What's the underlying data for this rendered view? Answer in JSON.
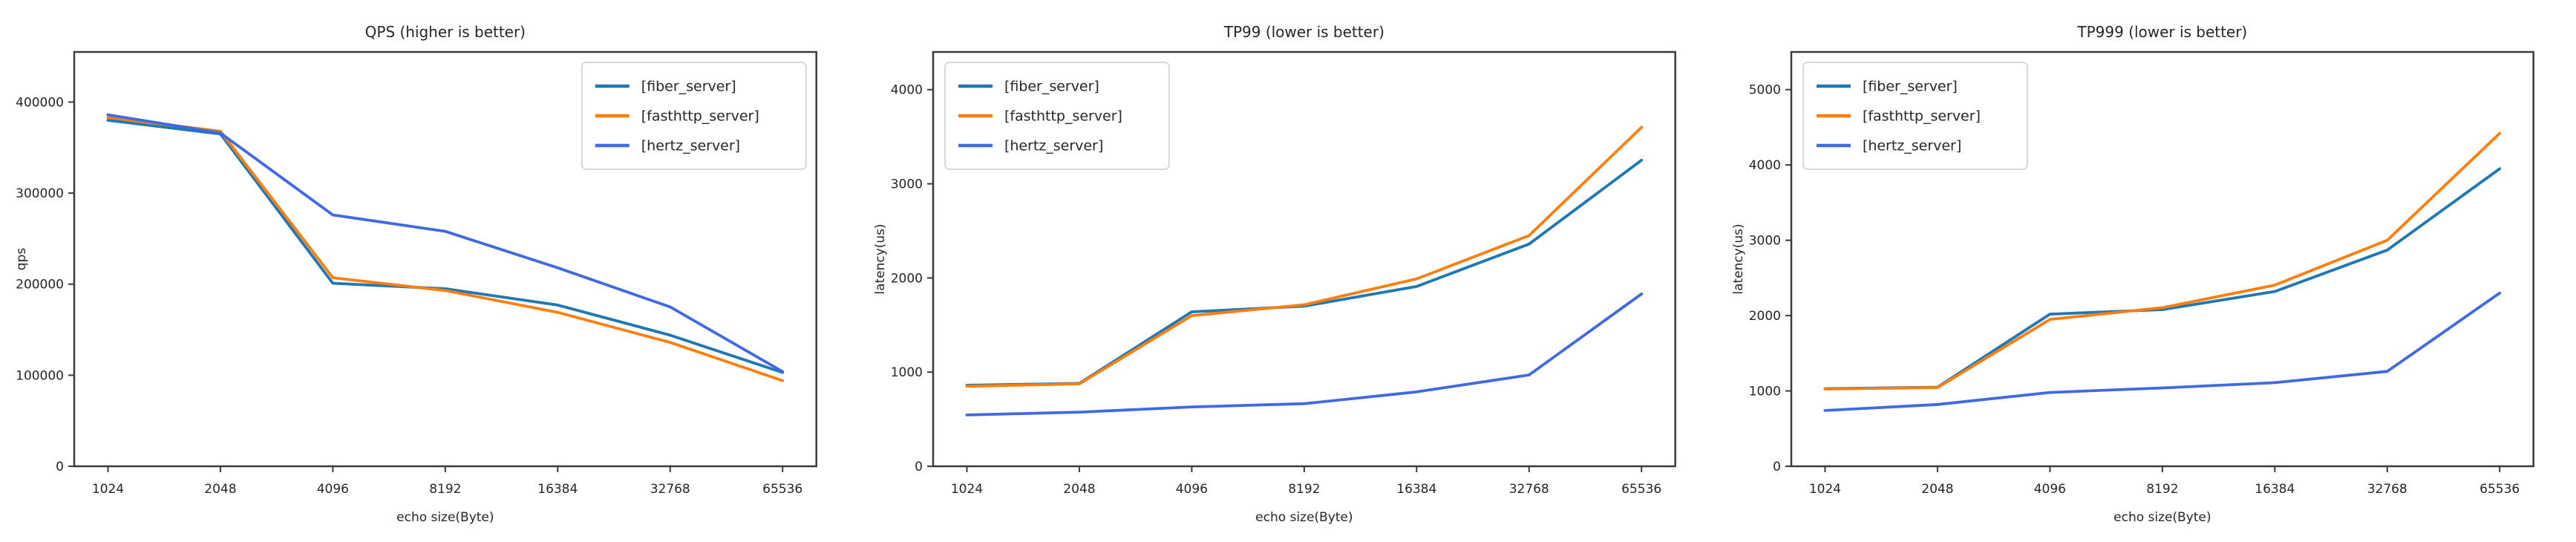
{
  "figure": {
    "background": "#ffffff",
    "text_color": "#262626",
    "spine_color": "#3b3b3b",
    "legend_border_color": "#cccccc",
    "legend_background": "#ffffff"
  },
  "chart_data": [
    {
      "type": "line",
      "title": "QPS (higher is better)",
      "xlabel": "echo size(Byte)",
      "ylabel": "qps",
      "categories": [
        "1024",
        "2048",
        "4096",
        "8192",
        "16384",
        "32768",
        "65536"
      ],
      "yticks": [
        0,
        100000,
        200000,
        300000,
        400000
      ],
      "ylim": [
        0,
        455000
      ],
      "grid": false,
      "legend_position": "upper-right",
      "series": [
        {
          "name": "[fiber_server]",
          "color": "#1f77b4",
          "values": [
            380000,
            365000,
            201000,
            195000,
            177000,
            144000,
            103000
          ]
        },
        {
          "name": "[fasthttp_server]",
          "color": "#ff7f0e",
          "values": [
            383000,
            368000,
            207000,
            193000,
            169000,
            136000,
            94000
          ]
        },
        {
          "name": "[hertz_server]",
          "color": "#4169e1",
          "values": [
            386000,
            366000,
            276000,
            258000,
            218000,
            175000,
            104000
          ]
        }
      ]
    },
    {
      "type": "line",
      "title": "TP99 (lower is better)",
      "xlabel": "echo size(Byte)",
      "ylabel": "latency(us)",
      "categories": [
        "1024",
        "2048",
        "4096",
        "8192",
        "16384",
        "32768",
        "65536"
      ],
      "yticks": [
        0,
        1000,
        2000,
        3000,
        4000
      ],
      "ylim": [
        0,
        4400
      ],
      "grid": false,
      "legend_position": "upper-left",
      "series": [
        {
          "name": "[fiber_server]",
          "color": "#1f77b4",
          "values": [
            860,
            880,
            1640,
            1700,
            1910,
            2360,
            3250
          ]
        },
        {
          "name": "[fasthttp_server]",
          "color": "#ff7f0e",
          "values": [
            850,
            875,
            1600,
            1715,
            1990,
            2450,
            3600
          ]
        },
        {
          "name": "[hertz_server]",
          "color": "#4169e1",
          "values": [
            545,
            575,
            630,
            665,
            790,
            970,
            1830
          ]
        }
      ]
    },
    {
      "type": "line",
      "title": "TP999 (lower is better)",
      "xlabel": "echo size(Byte)",
      "ylabel": "latency(us)",
      "categories": [
        "1024",
        "2048",
        "4096",
        "8192",
        "16384",
        "32768",
        "65536"
      ],
      "yticks": [
        0,
        1000,
        2000,
        3000,
        4000,
        5000
      ],
      "ylim": [
        0,
        5500
      ],
      "grid": false,
      "legend_position": "upper-left",
      "series": [
        {
          "name": "[fiber_server]",
          "color": "#1f77b4",
          "values": [
            1030,
            1050,
            2020,
            2080,
            2320,
            2870,
            3950
          ]
        },
        {
          "name": "[fasthttp_server]",
          "color": "#ff7f0e",
          "values": [
            1025,
            1045,
            1950,
            2105,
            2405,
            3000,
            4420
          ]
        },
        {
          "name": "[hertz_server]",
          "color": "#4169e1",
          "values": [
            740,
            820,
            980,
            1040,
            1110,
            1260,
            2300
          ]
        }
      ]
    }
  ]
}
